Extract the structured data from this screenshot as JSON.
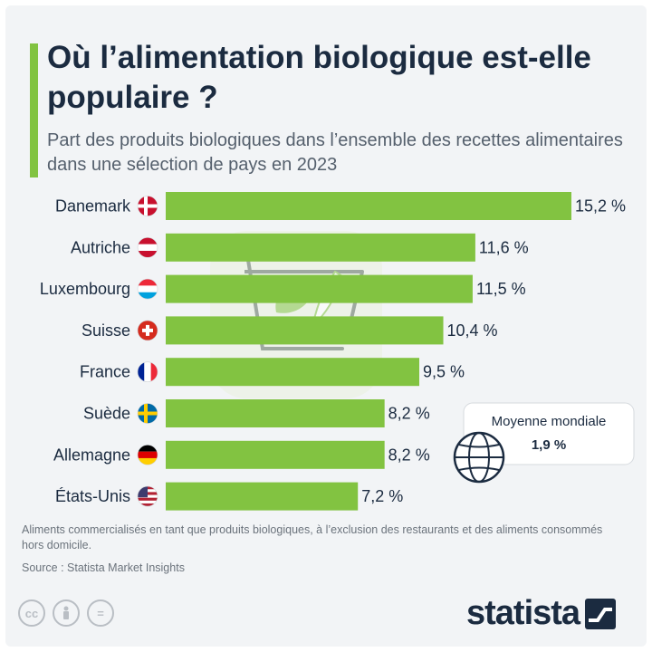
{
  "header": {
    "title": "Où l’alimentation biologique est-elle populaire ?",
    "subtitle": "Part des produits biologiques dans l’ensemble des recettes alimentaires dans une sélection de pays en 2023"
  },
  "chart_data": {
    "type": "bar",
    "orientation": "horizontal",
    "categories": [
      "Danemark",
      "Autriche",
      "Luxembourg",
      "Suisse",
      "France",
      "Suède",
      "Allemagne",
      "États-Unis"
    ],
    "values": [
      15.2,
      11.6,
      11.5,
      10.4,
      9.5,
      8.2,
      8.2,
      7.2
    ],
    "value_labels": [
      "15,2 %",
      "11,6 %",
      "11,5 %",
      "10,4 %",
      "9,5 %",
      "8,2 %",
      "8,2 %",
      "7,2 %"
    ],
    "title": "Où l’alimentation biologique est-elle populaire ?",
    "subtitle": "Part des produits biologiques dans l’ensemble des recettes alimentaires dans une sélection de pays en 2023",
    "xlabel": "",
    "ylabel": "",
    "xlim": [
      0,
      15.2
    ],
    "grid": false,
    "bar_color": "#82c341"
  },
  "callout": {
    "label": "Moyenne mondiale",
    "value": "1,9 %"
  },
  "footer": {
    "note": "Aliments commercialisés en tant que produits biologiques, à l’exclusion des restaurants et des aliments consommés hors domicile.",
    "source": "Source : Statista Market Insights",
    "license_icons": [
      "creative-commons-icon",
      "attribution-icon",
      "no-derivatives-icon"
    ],
    "brand": "statista"
  },
  "colors": {
    "accent": "#82c341",
    "title": "#1b2b40",
    "text": "#55606d",
    "background": "#f2f4f6"
  },
  "flags": [
    "denmark-flag-icon",
    "austria-flag-icon",
    "luxembourg-flag-icon",
    "switzerland-flag-icon",
    "france-flag-icon",
    "sweden-flag-icon",
    "germany-flag-icon",
    "usa-flag-icon"
  ]
}
